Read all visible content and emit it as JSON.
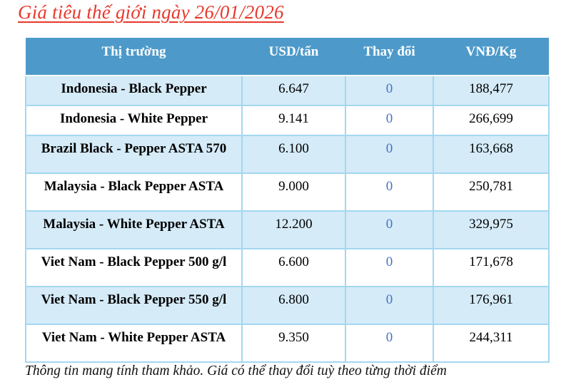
{
  "title": "Giá tiêu thế giới ngày 26/01/2026",
  "table": {
    "columns": [
      "Thị trường",
      "USD/tấn",
      "Thay đổi",
      "VNĐ/Kg"
    ],
    "rows": [
      {
        "market": "Indonesia - Black Pepper",
        "usd": "6.647",
        "change": "0",
        "vnd": "188,477"
      },
      {
        "market": "Indonesia - White Pepper",
        "usd": "9.141",
        "change": "0",
        "vnd": "266,699"
      },
      {
        "market": "Brazil Black - Pepper ASTA 570",
        "usd": "6.100",
        "change": "0",
        "vnd": "163,668"
      },
      {
        "market": "Malaysia - Black Pepper ASTA",
        "usd": "9.000",
        "change": "0",
        "vnd": "250,781"
      },
      {
        "market": "Malaysia - White Pepper ASTA",
        "usd": "12.200",
        "change": "0",
        "vnd": "329,975"
      },
      {
        "market": "Viet Nam - Black Pepper 500 g/l",
        "usd": "6.600",
        "change": "0",
        "vnd": "171,678"
      },
      {
        "market": "Viet Nam - Black Pepper 550 g/l",
        "usd": "6.800",
        "change": "0",
        "vnd": "176,961"
      },
      {
        "market": "Viet Nam - White Pepper ASTA",
        "usd": "9.350",
        "change": "0",
        "vnd": "244,311"
      }
    ]
  },
  "footer": "Thông tin mang tính tham khảo. Giá có thể thay đổi tuỳ theo từng thời điểm",
  "colors": {
    "header_bg": "#4d9aca",
    "row_alt_bg": "#d5ebf8",
    "cell_border": "#a3d7f0",
    "title_red": "#e8382b",
    "change_blue": "#4472c4"
  }
}
